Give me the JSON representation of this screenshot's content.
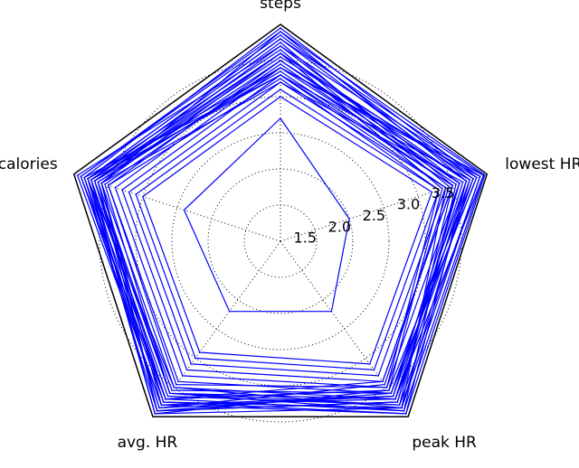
{
  "chart_data": {
    "type": "radar",
    "title": "",
    "axes": [
      "steps",
      "lowest HR",
      "peak HR",
      "avg. HR",
      "calories"
    ],
    "radial_ticks": [
      "1.5",
      "2.0",
      "2.5",
      "3.0",
      "3.5"
    ],
    "radial_tick_values": [
      1.5,
      2.0,
      2.5,
      3.0,
      3.5
    ],
    "rlim": [
      1.0,
      4.0
    ],
    "grid": true,
    "grid_style": "dotted",
    "series_color": "#0000ff",
    "frame_color": "#000000",
    "series": [
      {
        "values": [
          2.7,
          2.0,
          2.2,
          2.2,
          2.4
        ]
      },
      {
        "values": [
          3.0,
          3.2,
          3.1,
          2.9,
          3.0
        ]
      },
      {
        "values": [
          3.1,
          3.3,
          3.2,
          3.0,
          3.1
        ]
      },
      {
        "values": [
          3.2,
          3.4,
          3.3,
          3.1,
          3.2
        ]
      },
      {
        "values": [
          3.3,
          3.5,
          3.4,
          3.2,
          3.3
        ]
      },
      {
        "values": [
          3.4,
          3.6,
          3.5,
          3.3,
          3.4
        ]
      },
      {
        "values": [
          3.5,
          3.7,
          3.6,
          3.4,
          3.5
        ]
      },
      {
        "values": [
          3.6,
          3.8,
          3.7,
          3.5,
          3.6
        ]
      },
      {
        "values": [
          3.7,
          3.9,
          3.8,
          3.6,
          3.7
        ]
      },
      {
        "values": [
          3.8,
          3.95,
          3.9,
          3.7,
          3.8
        ]
      },
      {
        "values": [
          3.9,
          3.97,
          3.95,
          3.8,
          3.9
        ]
      },
      {
        "values": [
          3.95,
          3.85,
          3.6,
          3.9,
          3.85
        ]
      },
      {
        "values": [
          3.4,
          3.9,
          3.85,
          3.95,
          3.8
        ]
      },
      {
        "values": [
          3.6,
          3.7,
          3.95,
          3.75,
          3.7
        ]
      },
      {
        "values": [
          3.3,
          3.75,
          3.65,
          3.85,
          3.75
        ]
      },
      {
        "values": [
          3.5,
          3.6,
          3.75,
          3.9,
          3.65
        ]
      },
      {
        "values": [
          3.75,
          3.5,
          3.8,
          3.65,
          3.75
        ]
      },
      {
        "values": [
          3.2,
          3.65,
          3.7,
          3.8,
          3.6
        ]
      },
      {
        "values": [
          3.85,
          3.8,
          3.55,
          3.7,
          3.9
        ]
      },
      {
        "values": [
          3.45,
          3.55,
          3.9,
          3.6,
          3.55
        ]
      },
      {
        "values": [
          3.65,
          3.45,
          3.45,
          3.85,
          3.8
        ]
      },
      {
        "values": [
          3.55,
          3.85,
          3.6,
          3.55,
          3.7
        ]
      },
      {
        "values": [
          3.3,
          3.4,
          3.85,
          3.75,
          3.85
        ]
      },
      {
        "values": [
          3.9,
          3.7,
          3.75,
          3.9,
          3.6
        ]
      },
      {
        "values": [
          3.25,
          3.3,
          3.5,
          3.45,
          3.5
        ]
      },
      {
        "values": [
          3.7,
          3.6,
          3.65,
          3.8,
          3.95
        ]
      },
      {
        "values": [
          3.4,
          3.95,
          3.7,
          3.6,
          3.65
        ]
      },
      {
        "values": [
          3.6,
          3.35,
          3.55,
          3.95,
          3.75
        ]
      },
      {
        "values": [
          3.8,
          3.75,
          3.85,
          3.5,
          3.8
        ]
      },
      {
        "values": [
          3.35,
          3.5,
          3.4,
          3.7,
          3.7
        ]
      }
    ]
  }
}
